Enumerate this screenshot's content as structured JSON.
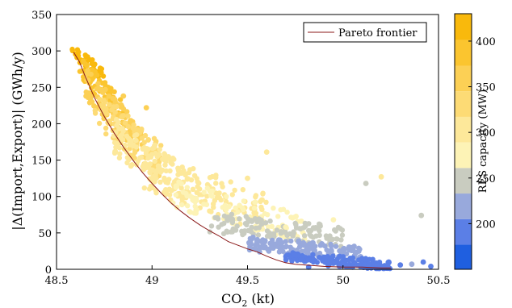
{
  "chart_data": {
    "type": "scatter",
    "xlabel": "CO",
    "xlabel_subscript": "2",
    "xlabel_unit": " (kt)",
    "ylabel": "|Δ(Import,Export)| (GWh/y)",
    "xlim": [
      48.5,
      50.5
    ],
    "ylim": [
      0,
      350
    ],
    "x_ticks": [
      48.5,
      49,
      49.5,
      50,
      50.5
    ],
    "x_tick_labels": [
      "48.5",
      "49",
      "49.5",
      "50",
      "50.5"
    ],
    "y_ticks": [
      0,
      50,
      100,
      150,
      200,
      250,
      300,
      350
    ],
    "y_tick_labels": [
      "0",
      "50",
      "100",
      "150",
      "200",
      "250",
      "300",
      "350"
    ],
    "grid": false,
    "legend": {
      "position": "top-right",
      "entries": [
        {
          "label": "Pareto frontier",
          "color": "#8b1a1a"
        }
      ]
    },
    "colorbar": {
      "label": "RES capacity (MW)",
      "range": [
        150,
        430
      ],
      "ticks": [
        200,
        250,
        300,
        350,
        400
      ],
      "tick_labels": [
        "200",
        "250",
        "300",
        "350",
        "400"
      ],
      "bands": [
        {
          "from": 150,
          "to": 177,
          "color": "#1f5fe0"
        },
        {
          "from": 177,
          "to": 205,
          "color": "#5b7fe6"
        },
        {
          "from": 205,
          "to": 233,
          "color": "#98a9dc"
        },
        {
          "from": 233,
          "to": 261,
          "color": "#c9ccc0"
        },
        {
          "from": 261,
          "to": 289,
          "color": "#fdf3b6"
        },
        {
          "from": 289,
          "to": 317,
          "color": "#fde89a"
        },
        {
          "from": 317,
          "to": 345,
          "color": "#fddb75"
        },
        {
          "from": 345,
          "to": 373,
          "color": "#fcd055"
        },
        {
          "from": 373,
          "to": 401,
          "color": "#fbc52f"
        },
        {
          "from": 401,
          "to": 430,
          "color": "#f9b90c"
        }
      ]
    },
    "pareto_frontier": [
      [
        48.59,
        298
      ],
      [
        48.62,
        285
      ],
      [
        48.65,
        265
      ],
      [
        48.7,
        235
      ],
      [
        48.75,
        210
      ],
      [
        48.8,
        188
      ],
      [
        48.85,
        168
      ],
      [
        48.9,
        150
      ],
      [
        48.95,
        133
      ],
      [
        49.0,
        118
      ],
      [
        49.05,
        104
      ],
      [
        49.1,
        91
      ],
      [
        49.15,
        80
      ],
      [
        49.2,
        70
      ],
      [
        49.25,
        61
      ],
      [
        49.3,
        53
      ],
      [
        49.35,
        46
      ],
      [
        49.4,
        38
      ],
      [
        49.45,
        33
      ],
      [
        49.5,
        28
      ],
      [
        49.55,
        24
      ],
      [
        49.6,
        18
      ],
      [
        49.65,
        13
      ],
      [
        49.7,
        9
      ],
      [
        49.75,
        7
      ],
      [
        49.8,
        6
      ],
      [
        49.85,
        5
      ],
      [
        49.9,
        4
      ],
      [
        50.0,
        3
      ],
      [
        50.1,
        3
      ],
      [
        50.2,
        2
      ],
      [
        50.25,
        2
      ]
    ],
    "point_groups": [
      {
        "res": 415,
        "x": [
          48.58,
          48.75
        ],
        "y_base": [
          300,
          265
        ],
        "spread": 10,
        "count": 45
      },
      {
        "res": 390,
        "x": [
          48.62,
          48.85
        ],
        "y_base": [
          278,
          215
        ],
        "spread": 16,
        "count": 70
      },
      {
        "res": 365,
        "x": [
          48.65,
          48.95
        ],
        "y_base": [
          255,
          175
        ],
        "spread": 22,
        "count": 95
      },
      {
        "res": 340,
        "x": [
          48.7,
          49.05
        ],
        "y_base": [
          225,
          145
        ],
        "spread": 26,
        "count": 110
      },
      {
        "res": 315,
        "x": [
          48.8,
          49.2
        ],
        "y_base": [
          185,
          110
        ],
        "spread": 28,
        "count": 120
      },
      {
        "res": 290,
        "x": [
          48.95,
          49.6
        ],
        "y_base": [
          140,
          75
        ],
        "spread": 30,
        "count": 140
      },
      {
        "res": 270,
        "x": [
          49.1,
          49.8
        ],
        "y_base": [
          105,
          55
        ],
        "spread": 20,
        "count": 110
      },
      {
        "res": 250,
        "x": [
          49.3,
          50.0
        ],
        "y_base": [
          65,
          45
        ],
        "spread": 14,
        "count": 130
      },
      {
        "res": 225,
        "x": [
          49.5,
          50.1
        ],
        "y_base": [
          35,
          22
        ],
        "spread": 10,
        "count": 150
      },
      {
        "res": 200,
        "x": [
          49.7,
          50.25
        ],
        "y_base": [
          18,
          6
        ],
        "spread": 6,
        "count": 110
      },
      {
        "res": 180,
        "x": [
          49.9,
          50.25
        ],
        "y_base": [
          8,
          2
        ],
        "spread": 3,
        "count": 60
      }
    ],
    "outliers": [
      {
        "x": 48.85,
        "y": 238,
        "res": 360
      },
      {
        "x": 48.97,
        "y": 222,
        "res": 355
      },
      {
        "x": 49.6,
        "y": 161,
        "res": 300
      },
      {
        "x": 49.5,
        "y": 125,
        "res": 290
      },
      {
        "x": 50.2,
        "y": 127,
        "res": 290
      },
      {
        "x": 50.12,
        "y": 118,
        "res": 255
      },
      {
        "x": 50.41,
        "y": 74,
        "res": 255
      },
      {
        "x": 49.7,
        "y": 58,
        "res": 265
      },
      {
        "x": 49.95,
        "y": 68,
        "res": 268
      },
      {
        "x": 50.36,
        "y": 7,
        "res": 205
      },
      {
        "x": 50.42,
        "y": 10,
        "res": 195
      },
      {
        "x": 50.46,
        "y": 4,
        "res": 195
      },
      {
        "x": 50.3,
        "y": 6,
        "res": 200
      },
      {
        "x": 49.82,
        "y": 3,
        "res": 195
      },
      {
        "x": 50.05,
        "y": 3,
        "res": 185
      }
    ]
  }
}
